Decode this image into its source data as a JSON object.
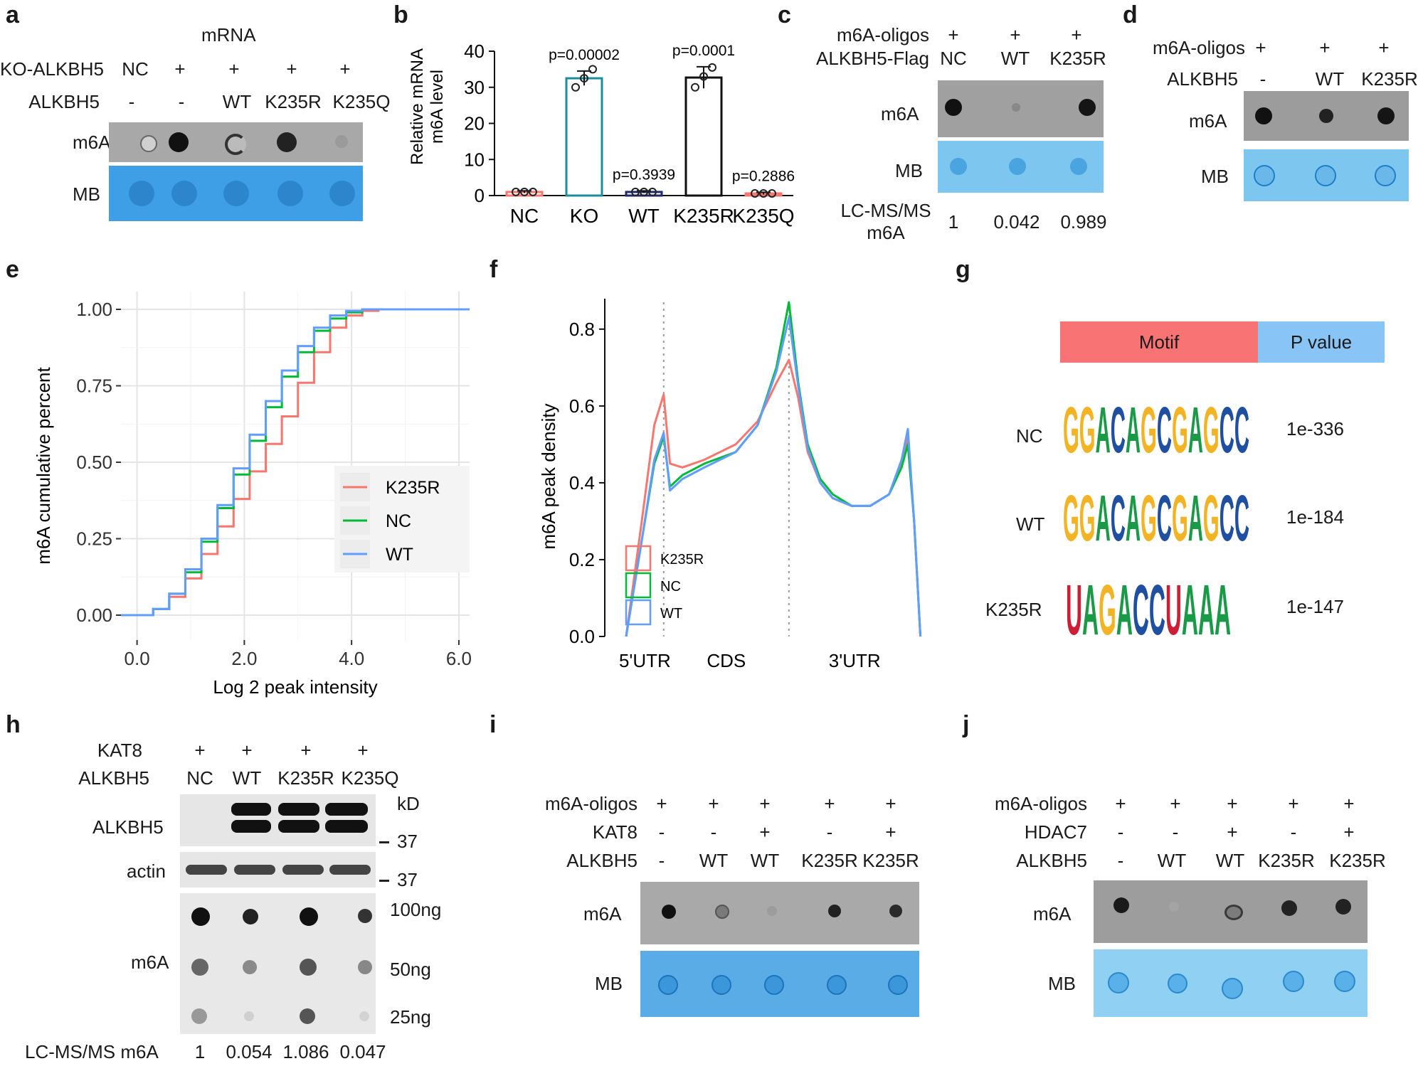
{
  "panel_labels": [
    "a",
    "b",
    "c",
    "d",
    "e",
    "f",
    "g",
    "h",
    "i",
    "j"
  ],
  "a": {
    "mrna": "mRNA",
    "row1_label": "KO-ALKBH5",
    "row1": [
      "NC",
      "+",
      "+",
      "+",
      "+"
    ],
    "row2_label": "ALKBH5",
    "row2": [
      "-",
      "-",
      "WT",
      "K235R",
      "K235Q"
    ],
    "m6a": "m6A",
    "mb": "MB"
  },
  "c": {
    "row1_label": "m6A-oligos",
    "row1": [
      "+",
      "+",
      "+"
    ],
    "row2_label": "ALKBH5-Flag",
    "row2": [
      "NC",
      "WT",
      "K235R"
    ],
    "m6a": "m6A",
    "mb": "MB",
    "lcms_line1": "LC-MS/MS",
    "lcms_line2": "m6A",
    "lcms": [
      "1",
      "0.042",
      "0.989"
    ]
  },
  "d": {
    "row1_label": "m6A-oligos",
    "row1": [
      "+",
      "+",
      "+"
    ],
    "row2_label": "ALKBH5",
    "row2": [
      "-",
      "WT",
      "K235R"
    ],
    "m6a": "m6A",
    "mb": "MB"
  },
  "g": {
    "motif_header": "Motif",
    "pvalue_header": "P value",
    "rows": [
      {
        "name": "NC",
        "motif": "GGACAGCGAGCC",
        "p": "1e-336"
      },
      {
        "name": "WT",
        "motif": "GGACAGCGAGCC",
        "p": "1e-184"
      },
      {
        "name": "K235R",
        "motif": "UAGACCUAAA",
        "p": "1e-147"
      }
    ]
  },
  "h": {
    "row1_label": "KAT8",
    "row1": [
      "+",
      "+",
      "+",
      "+"
    ],
    "row2_label": "ALKBH5",
    "row2": [
      "NC",
      "WT",
      "K235R",
      "K235Q"
    ],
    "alkbh5": "ALKBH5",
    "actin": "actin",
    "m6a": "m6A",
    "kd": "kD",
    "mw1": "37",
    "mw2": "37",
    "amounts": [
      "100ng",
      "50ng",
      "25ng"
    ],
    "lcms_label": "LC-MS/MS m6A",
    "lcms": [
      "1",
      "0.054",
      "1.086",
      "0.047"
    ]
  },
  "i": {
    "row1_label": "m6A-oligos",
    "row1": [
      "+",
      "+",
      "+",
      "+",
      "+"
    ],
    "row2_label": "KAT8",
    "row2": [
      "-",
      "-",
      "+",
      "-",
      "+"
    ],
    "row3_label": "ALKBH5",
    "row3": [
      "-",
      "WT",
      "WT",
      "K235R",
      "K235R"
    ],
    "m6a": "m6A",
    "mb": "MB"
  },
  "j": {
    "row1_label": "m6A-oligos",
    "row1": [
      "+",
      "+",
      "+",
      "+",
      "+"
    ],
    "row2_label": "HDAC7",
    "row2": [
      "-",
      "-",
      "+",
      "-",
      "+"
    ],
    "row3_label": "ALKBH5",
    "row3": [
      "-",
      "WT",
      "WT",
      "K235R",
      "K235R"
    ],
    "m6a": "m6A",
    "mb": "MB"
  },
  "colors": {
    "k235r": "#f8766d",
    "nc": "#00ba38",
    "wt": "#619cff",
    "teal": "#1a8f9a",
    "navy": "#1f2a6b",
    "motif_red": "#f87474",
    "motif_blue": "#88c4f6"
  },
  "chart_data": [
    {
      "type": "bar",
      "panel": "b",
      "categories": [
        "NC",
        "KO",
        "WT",
        "K235R",
        "K235Q"
      ],
      "values": [
        1,
        32.5,
        1,
        32.7,
        0.6
      ],
      "points": [
        [
          1,
          1,
          1
        ],
        [
          30,
          32.5,
          35
        ],
        [
          1,
          1,
          1
        ],
        [
          30,
          33,
          35.5
        ],
        [
          0.6,
          0.6,
          0.6
        ]
      ],
      "error": [
        0.3,
        2,
        0.3,
        3,
        0.3
      ],
      "pvalues": [
        "",
        "p=0.00002",
        "p=0.3939",
        "p=0.0001",
        "p=0.2886"
      ],
      "ylabel": "Relative mRNA\nm6A level",
      "ylim": [
        0,
        40
      ],
      "yticks": [
        "0",
        "10",
        "20",
        "30",
        "40"
      ]
    },
    {
      "type": "line",
      "panel": "e",
      "xlabel": "Log 2 peak intensity",
      "ylabel": "m6A cumulative percent",
      "xlim": [
        -0.3,
        6.2
      ],
      "ylim": [
        0,
        1
      ],
      "xticks": [
        "0.0",
        "2.0",
        "4.0",
        "6.0"
      ],
      "yticks": [
        "0.00",
        "0.25",
        "0.50",
        "0.75",
        "1.00"
      ],
      "grid": true,
      "legend": "center-right",
      "series": [
        {
          "name": "K235R",
          "x": [
            -0.3,
            0.3,
            0.6,
            0.9,
            1.2,
            1.5,
            1.8,
            2.1,
            2.4,
            2.7,
            3.0,
            3.3,
            3.6,
            3.9,
            4.2,
            4.5,
            6.2
          ],
          "y": [
            0,
            0.02,
            0.06,
            0.12,
            0.2,
            0.29,
            0.38,
            0.47,
            0.56,
            0.65,
            0.76,
            0.86,
            0.94,
            0.98,
            0.995,
            1,
            1
          ]
        },
        {
          "name": "NC",
          "x": [
            -0.3,
            0.3,
            0.6,
            0.9,
            1.2,
            1.5,
            1.8,
            2.1,
            2.4,
            2.7,
            3.0,
            3.3,
            3.6,
            3.9,
            4.2,
            4.5,
            6.2
          ],
          "y": [
            0,
            0.02,
            0.07,
            0.14,
            0.24,
            0.35,
            0.46,
            0.57,
            0.68,
            0.78,
            0.86,
            0.93,
            0.97,
            0.99,
            1,
            1,
            1
          ]
        },
        {
          "name": "WT",
          "x": [
            -0.3,
            0.3,
            0.6,
            0.9,
            1.2,
            1.5,
            1.8,
            2.1,
            2.4,
            2.7,
            3.0,
            3.3,
            3.6,
            3.9,
            4.2,
            4.5,
            6.2
          ],
          "y": [
            0,
            0.02,
            0.07,
            0.15,
            0.25,
            0.36,
            0.48,
            0.59,
            0.7,
            0.8,
            0.88,
            0.94,
            0.98,
            0.995,
            1,
            1,
            1
          ]
        }
      ]
    },
    {
      "type": "line",
      "panel": "f",
      "ylabel": "m6A peak density",
      "ylim": [
        0,
        0.87
      ],
      "yticks": [
        "0.0",
        "0.2",
        "0.4",
        "0.6",
        "0.8"
      ],
      "regions": [
        "5'UTR",
        "CDS",
        "3'UTR"
      ],
      "legend": "bottom-left",
      "series": [
        {
          "name": "K235R",
          "x": [
            0,
            0.05,
            0.09,
            0.12,
            0.14,
            0.18,
            0.25,
            0.35,
            0.42,
            0.48,
            0.52,
            0.55,
            0.58,
            0.62,
            0.66,
            0.72,
            0.78,
            0.84,
            0.88,
            0.9,
            0.92,
            0.94
          ],
          "y": [
            0,
            0.3,
            0.55,
            0.63,
            0.45,
            0.44,
            0.46,
            0.5,
            0.56,
            0.66,
            0.72,
            0.62,
            0.48,
            0.4,
            0.36,
            0.34,
            0.34,
            0.37,
            0.45,
            0.52,
            0.3,
            0
          ]
        },
        {
          "name": "NC",
          "x": [
            0,
            0.05,
            0.09,
            0.12,
            0.14,
            0.18,
            0.25,
            0.35,
            0.42,
            0.48,
            0.52,
            0.55,
            0.58,
            0.62,
            0.66,
            0.72,
            0.78,
            0.84,
            0.88,
            0.9,
            0.92,
            0.94
          ],
          "y": [
            0,
            0.25,
            0.45,
            0.52,
            0.39,
            0.42,
            0.45,
            0.48,
            0.55,
            0.7,
            0.87,
            0.66,
            0.5,
            0.41,
            0.37,
            0.34,
            0.34,
            0.37,
            0.44,
            0.5,
            0.3,
            0
          ]
        },
        {
          "name": "WT",
          "x": [
            0,
            0.05,
            0.09,
            0.12,
            0.14,
            0.18,
            0.25,
            0.35,
            0.42,
            0.48,
            0.52,
            0.55,
            0.58,
            0.62,
            0.66,
            0.72,
            0.78,
            0.84,
            0.88,
            0.9,
            0.92,
            0.94
          ],
          "y": [
            0,
            0.25,
            0.46,
            0.53,
            0.38,
            0.41,
            0.44,
            0.48,
            0.55,
            0.69,
            0.83,
            0.65,
            0.49,
            0.4,
            0.36,
            0.34,
            0.34,
            0.37,
            0.46,
            0.54,
            0.3,
            0
          ]
        }
      ]
    }
  ]
}
